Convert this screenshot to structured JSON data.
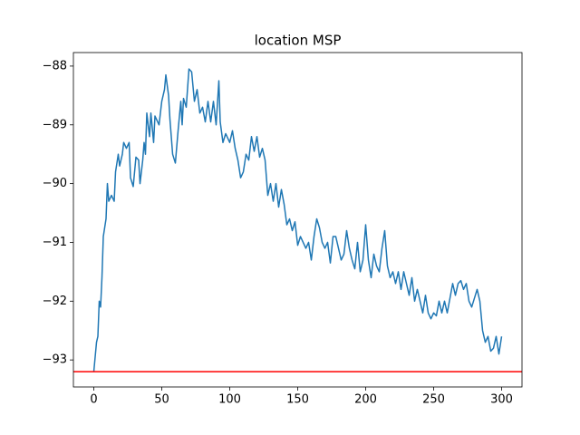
{
  "chart_data": {
    "type": "line",
    "title": "location MSP",
    "x": [
      0,
      2,
      3,
      4,
      5,
      6,
      7,
      9,
      10,
      11,
      13,
      15,
      16,
      18,
      19,
      21,
      22,
      24,
      26,
      27,
      29,
      31,
      33,
      34,
      36,
      37,
      38,
      39,
      41,
      42,
      44,
      45,
      48,
      50,
      52,
      53,
      55,
      56,
      58,
      60,
      62,
      64,
      65,
      66,
      68,
      70,
      72,
      74,
      76,
      78,
      80,
      82,
      84,
      86,
      88,
      90,
      92,
      93,
      95,
      97,
      100,
      102,
      104,
      106,
      108,
      110,
      112,
      114,
      116,
      118,
      120,
      122,
      124,
      126,
      128,
      130,
      132,
      134,
      136,
      138,
      140,
      142,
      144,
      146,
      148,
      150,
      152,
      154,
      156,
      158,
      160,
      162,
      164,
      166,
      168,
      170,
      172,
      174,
      176,
      178,
      180,
      182,
      184,
      186,
      188,
      190,
      192,
      194,
      196,
      198,
      200,
      202,
      204,
      206,
      208,
      210,
      212,
      214,
      216,
      218,
      220,
      222,
      224,
      226,
      228,
      230,
      232,
      234,
      236,
      238,
      240,
      242,
      244,
      246,
      248,
      250,
      252,
      254,
      256,
      258,
      260,
      262,
      264,
      266,
      268,
      270,
      272,
      274,
      276,
      278,
      280,
      282,
      284,
      286,
      288,
      290,
      292,
      294,
      296,
      298,
      300
    ],
    "series": [
      {
        "color": "#1f77b4",
        "values": [
          -93.2,
          -92.7,
          -92.6,
          -92.0,
          -92.1,
          -91.6,
          -90.9,
          -90.6,
          -90.0,
          -90.3,
          -90.2,
          -90.3,
          -89.8,
          -89.5,
          -89.7,
          -89.5,
          -89.3,
          -89.4,
          -89.3,
          -89.9,
          -90.05,
          -89.55,
          -89.6,
          -90.0,
          -89.6,
          -89.3,
          -89.5,
          -88.8,
          -89.2,
          -88.8,
          -89.3,
          -88.85,
          -89.0,
          -88.6,
          -88.4,
          -88.15,
          -88.5,
          -88.9,
          -89.5,
          -89.65,
          -89.1,
          -88.6,
          -89.0,
          -88.55,
          -88.7,
          -88.05,
          -88.1,
          -88.6,
          -88.4,
          -88.8,
          -88.7,
          -88.95,
          -88.6,
          -88.95,
          -88.6,
          -89.0,
          -88.25,
          -88.95,
          -89.3,
          -89.15,
          -89.3,
          -89.1,
          -89.4,
          -89.6,
          -89.9,
          -89.8,
          -89.5,
          -89.6,
          -89.2,
          -89.45,
          -89.2,
          -89.55,
          -89.4,
          -89.6,
          -90.2,
          -90.0,
          -90.3,
          -90.0,
          -90.4,
          -90.1,
          -90.35,
          -90.7,
          -90.6,
          -90.8,
          -90.65,
          -91.05,
          -90.9,
          -91.0,
          -91.1,
          -91.0,
          -91.3,
          -90.9,
          -90.6,
          -90.75,
          -91.0,
          -91.1,
          -91.0,
          -91.35,
          -90.9,
          -90.9,
          -91.1,
          -91.3,
          -91.2,
          -90.8,
          -91.1,
          -91.3,
          -91.45,
          -91.0,
          -91.5,
          -91.3,
          -90.7,
          -91.3,
          -91.6,
          -91.2,
          -91.4,
          -91.5,
          -91.1,
          -90.8,
          -91.4,
          -91.6,
          -91.5,
          -91.7,
          -91.5,
          -91.8,
          -91.5,
          -91.7,
          -91.9,
          -91.6,
          -92.0,
          -91.8,
          -92.0,
          -92.2,
          -91.9,
          -92.2,
          -92.3,
          -92.2,
          -92.25,
          -92.0,
          -92.2,
          -92.0,
          -92.2,
          -91.95,
          -91.7,
          -91.9,
          -91.7,
          -91.65,
          -91.8,
          -91.7,
          -92.0,
          -92.1,
          -91.95,
          -91.8,
          -92.0,
          -92.5,
          -92.7,
          -92.6,
          -92.85,
          -92.8,
          -92.6,
          -92.9,
          -92.6
        ]
      }
    ],
    "hline": {
      "value": -93.2,
      "color": "#ff0000"
    },
    "xlim": [
      -15,
      315
    ],
    "xticks": [
      0,
      50,
      100,
      150,
      200,
      250,
      300
    ],
    "ylim": [
      -93.46,
      -87.77
    ],
    "yticks": [
      {
        "value": -93,
        "label": "−93"
      },
      {
        "value": -92,
        "label": "−92"
      },
      {
        "value": -91,
        "label": "−91"
      },
      {
        "value": -90,
        "label": "−90"
      },
      {
        "value": -89,
        "label": "−89"
      },
      {
        "value": -88,
        "label": "−88"
      }
    ]
  }
}
